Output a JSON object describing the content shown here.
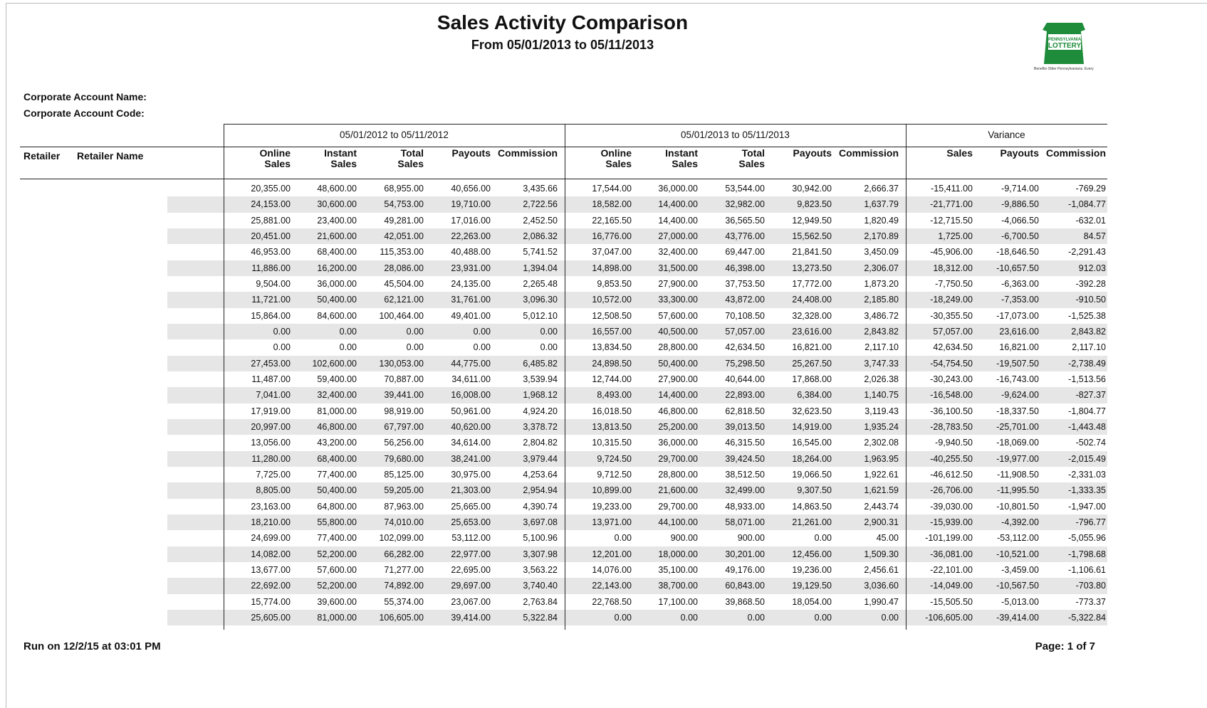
{
  "header": {
    "title": "Sales Activity Comparison",
    "subtitle": "From 05/01/2013 to 05/11/2013",
    "logo": {
      "line1": "PENNSYLVANIA",
      "line2": "LOTTERY",
      "tagline": "Benefits Older Pennsylvanians. Every Day."
    },
    "account_name_label": "Corporate Account Name:",
    "account_code_label": "Corporate Account Code:"
  },
  "table": {
    "groups": [
      "05/01/2012 to 05/11/2012",
      "05/01/2013 to 05/11/2013",
      "Variance"
    ],
    "row_headers": [
      "Retailer",
      "Retailer Name"
    ],
    "columns": [
      [
        "Online",
        "Sales"
      ],
      [
        "Instant",
        "Sales"
      ],
      [
        "Total",
        "Sales"
      ],
      [
        "Payouts"
      ],
      [
        "Commission"
      ],
      [
        "Online",
        "Sales"
      ],
      [
        "Instant",
        "Sales"
      ],
      [
        "Total",
        "Sales"
      ],
      [
        "Payouts"
      ],
      [
        "Commission"
      ],
      [
        "Sales"
      ],
      [
        "Payouts"
      ],
      [
        "Commission"
      ]
    ],
    "rows": [
      [
        "20,355.00",
        "48,600.00",
        "68,955.00",
        "40,656.00",
        "3,435.66",
        "17,544.00",
        "36,000.00",
        "53,544.00",
        "30,942.00",
        "2,666.37",
        "-15,411.00",
        "-9,714.00",
        "-769.29"
      ],
      [
        "24,153.00",
        "30,600.00",
        "54,753.00",
        "19,710.00",
        "2,722.56",
        "18,582.00",
        "14,400.00",
        "32,982.00",
        "9,823.50",
        "1,637.79",
        "-21,771.00",
        "-9,886.50",
        "-1,084.77"
      ],
      [
        "25,881.00",
        "23,400.00",
        "49,281.00",
        "17,016.00",
        "2,452.50",
        "22,165.50",
        "14,400.00",
        "36,565.50",
        "12,949.50",
        "1,820.49",
        "-12,715.50",
        "-4,066.50",
        "-632.01"
      ],
      [
        "20,451.00",
        "21,600.00",
        "42,051.00",
        "22,263.00",
        "2,086.32",
        "16,776.00",
        "27,000.00",
        "43,776.00",
        "15,562.50",
        "2,170.89",
        "1,725.00",
        "-6,700.50",
        "84.57"
      ],
      [
        "46,953.00",
        "68,400.00",
        "115,353.00",
        "40,488.00",
        "5,741.52",
        "37,047.00",
        "32,400.00",
        "69,447.00",
        "21,841.50",
        "3,450.09",
        "-45,906.00",
        "-18,646.50",
        "-2,291.43"
      ],
      [
        "11,886.00",
        "16,200.00",
        "28,086.00",
        "23,931.00",
        "1,394.04",
        "14,898.00",
        "31,500.00",
        "46,398.00",
        "13,273.50",
        "2,306.07",
        "18,312.00",
        "-10,657.50",
        "912.03"
      ],
      [
        "9,504.00",
        "36,000.00",
        "45,504.00",
        "24,135.00",
        "2,265.48",
        "9,853.50",
        "27,900.00",
        "37,753.50",
        "17,772.00",
        "1,873.20",
        "-7,750.50",
        "-6,363.00",
        "-392.28"
      ],
      [
        "11,721.00",
        "50,400.00",
        "62,121.00",
        "31,761.00",
        "3,096.30",
        "10,572.00",
        "33,300.00",
        "43,872.00",
        "24,408.00",
        "2,185.80",
        "-18,249.00",
        "-7,353.00",
        "-910.50"
      ],
      [
        "15,864.00",
        "84,600.00",
        "100,464.00",
        "49,401.00",
        "5,012.10",
        "12,508.50",
        "57,600.00",
        "70,108.50",
        "32,328.00",
        "3,486.72",
        "-30,355.50",
        "-17,073.00",
        "-1,525.38"
      ],
      [
        "0.00",
        "0.00",
        "0.00",
        "0.00",
        "0.00",
        "16,557.00",
        "40,500.00",
        "57,057.00",
        "23,616.00",
        "2,843.82",
        "57,057.00",
        "23,616.00",
        "2,843.82"
      ],
      [
        "0.00",
        "0.00",
        "0.00",
        "0.00",
        "0.00",
        "13,834.50",
        "28,800.00",
        "42,634.50",
        "16,821.00",
        "2,117.10",
        "42,634.50",
        "16,821.00",
        "2,117.10"
      ],
      [
        "27,453.00",
        "102,600.00",
        "130,053.00",
        "44,775.00",
        "6,485.82",
        "24,898.50",
        "50,400.00",
        "75,298.50",
        "25,267.50",
        "3,747.33",
        "-54,754.50",
        "-19,507.50",
        "-2,738.49"
      ],
      [
        "11,487.00",
        "59,400.00",
        "70,887.00",
        "34,611.00",
        "3,539.94",
        "12,744.00",
        "27,900.00",
        "40,644.00",
        "17,868.00",
        "2,026.38",
        "-30,243.00",
        "-16,743.00",
        "-1,513.56"
      ],
      [
        "7,041.00",
        "32,400.00",
        "39,441.00",
        "16,008.00",
        "1,968.12",
        "8,493.00",
        "14,400.00",
        "22,893.00",
        "6,384.00",
        "1,140.75",
        "-16,548.00",
        "-9,624.00",
        "-827.37"
      ],
      [
        "17,919.00",
        "81,000.00",
        "98,919.00",
        "50,961.00",
        "4,924.20",
        "16,018.50",
        "46,800.00",
        "62,818.50",
        "32,623.50",
        "3,119.43",
        "-36,100.50",
        "-18,337.50",
        "-1,804.77"
      ],
      [
        "20,997.00",
        "46,800.00",
        "67,797.00",
        "40,620.00",
        "3,378.72",
        "13,813.50",
        "25,200.00",
        "39,013.50",
        "14,919.00",
        "1,935.24",
        "-28,783.50",
        "-25,701.00",
        "-1,443.48"
      ],
      [
        "13,056.00",
        "43,200.00",
        "56,256.00",
        "34,614.00",
        "2,804.82",
        "10,315.50",
        "36,000.00",
        "46,315.50",
        "16,545.00",
        "2,302.08",
        "-9,940.50",
        "-18,069.00",
        "-502.74"
      ],
      [
        "11,280.00",
        "68,400.00",
        "79,680.00",
        "38,241.00",
        "3,979.44",
        "9,724.50",
        "29,700.00",
        "39,424.50",
        "18,264.00",
        "1,963.95",
        "-40,255.50",
        "-19,977.00",
        "-2,015.49"
      ],
      [
        "7,725.00",
        "77,400.00",
        "85,125.00",
        "30,975.00",
        "4,253.64",
        "9,712.50",
        "28,800.00",
        "38,512.50",
        "19,066.50",
        "1,922.61",
        "-46,612.50",
        "-11,908.50",
        "-2,331.03"
      ],
      [
        "8,805.00",
        "50,400.00",
        "59,205.00",
        "21,303.00",
        "2,954.94",
        "10,899.00",
        "21,600.00",
        "32,499.00",
        "9,307.50",
        "1,621.59",
        "-26,706.00",
        "-11,995.50",
        "-1,333.35"
      ],
      [
        "23,163.00",
        "64,800.00",
        "87,963.00",
        "25,665.00",
        "4,390.74",
        "19,233.00",
        "29,700.00",
        "48,933.00",
        "14,863.50",
        "2,443.74",
        "-39,030.00",
        "-10,801.50",
        "-1,947.00"
      ],
      [
        "18,210.00",
        "55,800.00",
        "74,010.00",
        "25,653.00",
        "3,697.08",
        "13,971.00",
        "44,100.00",
        "58,071.00",
        "21,261.00",
        "2,900.31",
        "-15,939.00",
        "-4,392.00",
        "-796.77"
      ],
      [
        "24,699.00",
        "77,400.00",
        "102,099.00",
        "53,112.00",
        "5,100.96",
        "0.00",
        "900.00",
        "900.00",
        "0.00",
        "45.00",
        "-101,199.00",
        "-53,112.00",
        "-5,055.96"
      ],
      [
        "14,082.00",
        "52,200.00",
        "66,282.00",
        "22,977.00",
        "3,307.98",
        "12,201.00",
        "18,000.00",
        "30,201.00",
        "12,456.00",
        "1,509.30",
        "-36,081.00",
        "-10,521.00",
        "-1,798.68"
      ],
      [
        "13,677.00",
        "57,600.00",
        "71,277.00",
        "22,695.00",
        "3,563.22",
        "14,076.00",
        "35,100.00",
        "49,176.00",
        "19,236.00",
        "2,456.61",
        "-22,101.00",
        "-3,459.00",
        "-1,106.61"
      ],
      [
        "22,692.00",
        "52,200.00",
        "74,892.00",
        "29,697.00",
        "3,740.40",
        "22,143.00",
        "38,700.00",
        "60,843.00",
        "19,129.50",
        "3,036.60",
        "-14,049.00",
        "-10,567.50",
        "-703.80"
      ],
      [
        "15,774.00",
        "39,600.00",
        "55,374.00",
        "23,067.00",
        "2,763.84",
        "22,768.50",
        "17,100.00",
        "39,868.50",
        "18,054.00",
        "1,990.47",
        "-15,505.50",
        "-5,013.00",
        "-773.37"
      ],
      [
        "25,605.00",
        "81,000.00",
        "106,605.00",
        "39,414.00",
        "5,322.84",
        "0.00",
        "0.00",
        "0.00",
        "0.00",
        "0.00",
        "-106,605.00",
        "-39,414.00",
        "-5,322.84"
      ]
    ]
  },
  "footer": {
    "run_on": "Run on 12/2/15 at 03:01 PM",
    "page": "Page: 1 of 7"
  }
}
